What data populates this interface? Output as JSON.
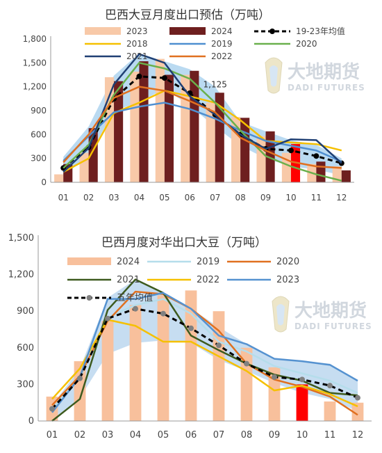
{
  "chart_data": [
    {
      "type": "bar",
      "title": "巴西大豆月度出口预估（万吨）",
      "categories": [
        "01",
        "02",
        "03",
        "04",
        "05",
        "06",
        "07",
        "08",
        "09",
        "10",
        "11",
        "12"
      ],
      "y_ticks": [
        "0",
        "300",
        "600",
        "900",
        "1,200",
        "1,500",
        "1,800"
      ],
      "ylim": [
        0,
        1800
      ],
      "grid": false,
      "legend_position": "top",
      "annotation": {
        "text": "1,125",
        "category": "07",
        "value": 1125
      },
      "watermark": {
        "cn": "大地期货",
        "en": "DADI FUTURES"
      },
      "band": {
        "color": "#aed4ef",
        "lower": [
          90,
          320,
          900,
          1000,
          1180,
          960,
          700,
          460,
          300,
          200,
          160,
          90
        ],
        "upper": [
          320,
          700,
          1340,
          1620,
          1520,
          1420,
          1200,
          760,
          640,
          530,
          470,
          300
        ]
      },
      "bars": [
        {
          "name": "2023",
          "color": "#f8c9a8",
          "values": [
            100,
            370,
            1320,
            1390,
            1550,
            1350,
            1000,
            820,
            580,
            370,
            230,
            200
          ]
        },
        {
          "name": "2024",
          "color": "#6e1f1f",
          "highlight_index": 9,
          "highlight_color": "#ff0000",
          "values": [
            230,
            680,
            1270,
            1520,
            1350,
            1400,
            1125,
            810,
            640,
            480,
            260,
            150
          ]
        }
      ],
      "lines": [
        {
          "name": "19-23年均值",
          "color": "#000000",
          "dashed": true,
          "marker": true,
          "values": [
            180,
            440,
            1050,
            1330,
            1310,
            1120,
            850,
            600,
            420,
            400,
            330,
            240
          ]
        },
        {
          "name": "2018",
          "color": "#f5c000",
          "values": [
            130,
            300,
            870,
            1000,
            1150,
            1080,
            1000,
            780,
            520,
            500,
            480,
            400
          ]
        },
        {
          "name": "2019",
          "color": "#4f8fd0",
          "values": [
            270,
            580,
            880,
            950,
            1000,
            920,
            800,
            650,
            520,
            460,
            400,
            260
          ]
        },
        {
          "name": "2020",
          "color": "#6ab04c",
          "values": [
            180,
            470,
            1100,
            1500,
            1430,
            1300,
            1000,
            650,
            330,
            200,
            100,
            20
          ]
        },
        {
          "name": "2021",
          "color": "#1f3f73",
          "values": [
            130,
            430,
            1230,
            1610,
            1500,
            1080,
            850,
            600,
            420,
            540,
            530,
            240
          ]
        },
        {
          "name": "2022",
          "color": "#e07020",
          "values": [
            250,
            600,
            1060,
            1200,
            1150,
            1020,
            880,
            560,
            400,
            260,
            200,
            180
          ]
        }
      ]
    },
    {
      "type": "bar",
      "title": "巴西月度对华出口大豆（万吨）",
      "categories": [
        "01",
        "02",
        "03",
        "04",
        "05",
        "06",
        "07",
        "08",
        "09",
        "10",
        "11",
        "12"
      ],
      "y_ticks": [
        "0",
        "300",
        "600",
        "900",
        "1,200",
        "1,500"
      ],
      "ylim": [
        0,
        1500
      ],
      "grid": false,
      "legend_position": "top",
      "watermark": {
        "cn": "大地期货",
        "en": "DADI FUTURES"
      },
      "band": {
        "color": "#bcd7ee",
        "lower": [
          10,
          190,
          550,
          640,
          660,
          640,
          500,
          410,
          310,
          230,
          180,
          80
        ],
        "upper": [
          130,
          430,
          1010,
          1160,
          1050,
          920,
          770,
          630,
          510,
          490,
          470,
          330
        ]
      },
      "bars": [
        {
          "name": "2024",
          "color": "#f8c09c",
          "highlight_index": 9,
          "highlight_color": "#ff0000",
          "values": [
            200,
            490,
            820,
            950,
            1030,
            1070,
            900,
            600,
            440,
            300,
            160,
            150
          ]
        }
      ],
      "lines": [
        {
          "name": "2019",
          "color": "#b5ddeb",
          "values": [
            100,
            350,
            850,
            950,
            1000,
            880,
            650,
            570,
            450,
            390,
            330,
            230
          ]
        },
        {
          "name": "2020",
          "color": "#e07020",
          "values": [
            130,
            370,
            820,
            1060,
            1040,
            920,
            740,
            470,
            340,
            280,
            200,
            50
          ]
        },
        {
          "name": "2021",
          "color": "#3d5a1e",
          "values": [
            0,
            180,
            910,
            1160,
            1050,
            700,
            580,
            470,
            380,
            330,
            230,
            210
          ]
        },
        {
          "name": "2022",
          "color": "#f5c000",
          "values": [
            180,
            430,
            830,
            780,
            650,
            650,
            530,
            410,
            250,
            290,
            220,
            120
          ]
        },
        {
          "name": "2023",
          "color": "#5592d0",
          "values": [
            70,
            360,
            1000,
            1000,
            1050,
            920,
            700,
            630,
            510,
            490,
            460,
            330
          ]
        },
        {
          "name": "五年均值",
          "color": "#000000",
          "dashed": true,
          "marker": true,
          "marker_color": "#808080",
          "values": [
            100,
            350,
            840,
            920,
            880,
            760,
            620,
            470,
            360,
            340,
            290,
            190
          ]
        }
      ]
    }
  ]
}
